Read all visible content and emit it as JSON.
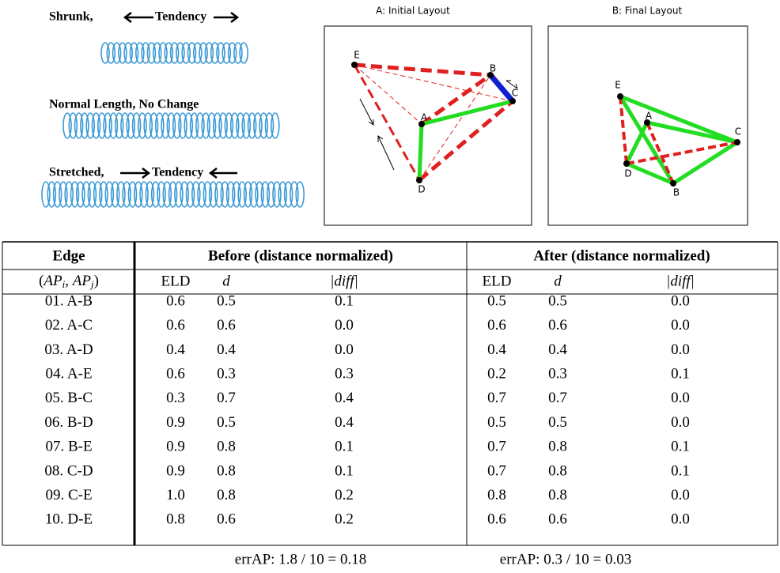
{
  "springs": [
    {
      "label": "Shrunk,",
      "tendency": "Tendency"
    },
    {
      "label": "Normal Length, No Change"
    },
    {
      "label": "Stretched,",
      "tendency": "Tendency"
    }
  ],
  "layouts": [
    {
      "title": "A: Initial Layout",
      "nodes": [
        "E",
        "B",
        "C",
        "A",
        "D"
      ]
    },
    {
      "title": "B: Final Layout",
      "nodes": [
        "E",
        "A",
        "C",
        "D",
        "B"
      ]
    }
  ],
  "table": {
    "header": [
      "Edge",
      "Before (distance normalized)",
      "After (distance normalized)"
    ],
    "subheader": {
      "edge": [
        "(",
        "AP",
        "i",
        ", ",
        "AP",
        "j",
        ")"
      ],
      "before": [
        "ELD",
        "d",
        "|diff|"
      ],
      "after": [
        "ELD",
        "d",
        "|diff|"
      ]
    },
    "rows": [
      [
        "01. A-B",
        "0.6",
        "0.5",
        "0.1",
        "0.5",
        "0.5",
        "0.0"
      ],
      [
        "02. A-C",
        "0.6",
        "0.6",
        "0.0",
        "0.6",
        "0.6",
        "0.0"
      ],
      [
        "03. A-D",
        "0.4",
        "0.4",
        "0.0",
        "0.4",
        "0.4",
        "0.0"
      ],
      [
        "04. A-E",
        "0.6",
        "0.3",
        "0.3",
        "0.2",
        "0.3",
        "0.1"
      ],
      [
        "05. B-C",
        "0.3",
        "0.7",
        "0.4",
        "0.7",
        "0.7",
        "0.0"
      ],
      [
        "06. B-D",
        "0.9",
        "0.5",
        "0.4",
        "0.5",
        "0.5",
        "0.0"
      ],
      [
        "07. B-E",
        "0.9",
        "0.8",
        "0.1",
        "0.7",
        "0.8",
        "0.1"
      ],
      [
        "08. C-D",
        "0.9",
        "0.8",
        "0.1",
        "0.7",
        "0.8",
        "0.1"
      ],
      [
        "09. C-E",
        "1.0",
        "0.8",
        "0.2",
        "0.8",
        "0.8",
        "0.0"
      ],
      [
        "10. D-E",
        "0.8",
        "0.6",
        "0.2",
        "0.6",
        "0.6",
        "0.0"
      ]
    ],
    "footer": [
      "errAP: 1.8 / 10 = 0.18",
      "errAP: 0.3 / 10 = 0.03"
    ]
  }
}
